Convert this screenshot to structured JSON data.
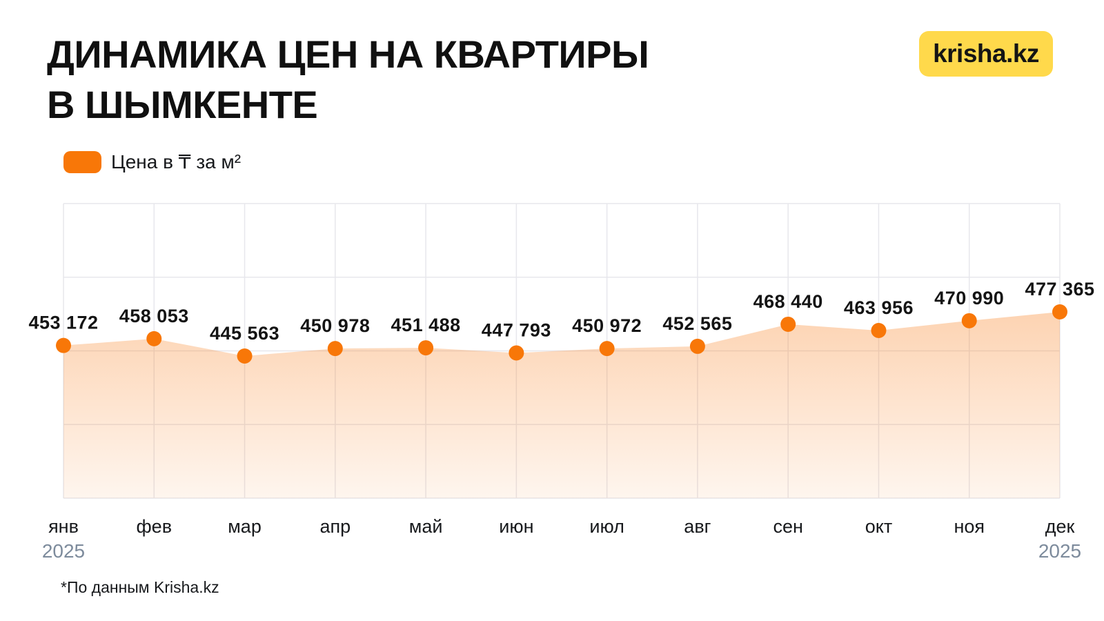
{
  "header": {
    "title_line1": "ДИНАМИКА ЦЕН НА КВАРТИРЫ",
    "title_line2": "В ШЫМКЕНТЕ",
    "logo_text": "krisha.kz",
    "logo_bg_color": "#FFD94B"
  },
  "legend": {
    "label": "Цена в ₸ за м²",
    "swatch_color": "#F87708"
  },
  "chart_data": {
    "type": "area",
    "title": "Динамика цен на квартиры в Шымкенте",
    "series_name": "Цена в ₸ за м²",
    "categories": [
      "янв",
      "фев",
      "мар",
      "апр",
      "май",
      "июн",
      "июл",
      "авг",
      "сен",
      "окт",
      "ноя",
      "дек"
    ],
    "values": [
      453172,
      458053,
      445563,
      450978,
      451488,
      447793,
      450972,
      452565,
      468440,
      463956,
      470990,
      477365
    ],
    "year_label_first": "2025",
    "year_label_last": "2025",
    "xlabel": "",
    "ylabel": "Цена в ₸ за м²",
    "grid": true,
    "legend_position": "top-left",
    "colors": {
      "point": "#F87708",
      "area_top": "rgba(248,119,16,0.32)",
      "area_bottom": "rgba(248,119,16,0.07)",
      "gridline": "#E7E7EC",
      "value_label": "#141414",
      "month_label": "#17191C",
      "year_label": "#7D8B9C"
    }
  },
  "footer": {
    "note": "*По данным Krisha.kz"
  }
}
